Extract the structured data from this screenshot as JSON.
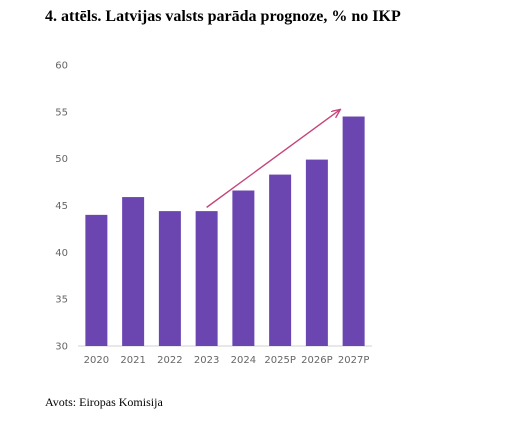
{
  "figure": {
    "title": "4. attēls. Latvijas valsts parāda prognoze, % no IKP",
    "source": "Avots: Eiropas Komisija"
  },
  "chart_data": {
    "type": "bar",
    "title": "",
    "xlabel": "",
    "ylabel": "",
    "categories": [
      "2020",
      "2021",
      "2022",
      "2023",
      "2024",
      "2025P",
      "2026P",
      "2027P"
    ],
    "values": [
      44.0,
      45.9,
      44.4,
      44.4,
      46.6,
      48.3,
      49.9,
      54.5
    ],
    "ylim": [
      30,
      60
    ],
    "yticks": [
      30,
      35,
      40,
      45,
      50,
      55,
      60
    ],
    "grid": false,
    "legend": "none",
    "annotations": [
      {
        "type": "trend-arrow",
        "from_category": "2023",
        "from_value": 44.8,
        "to_category": "2027P",
        "to_value": 55.2
      }
    ],
    "colors": {
      "bar": "#6b46b0",
      "arrow": "#c5467a",
      "axis": "#d0d0d0",
      "ticks": "#666666"
    }
  }
}
